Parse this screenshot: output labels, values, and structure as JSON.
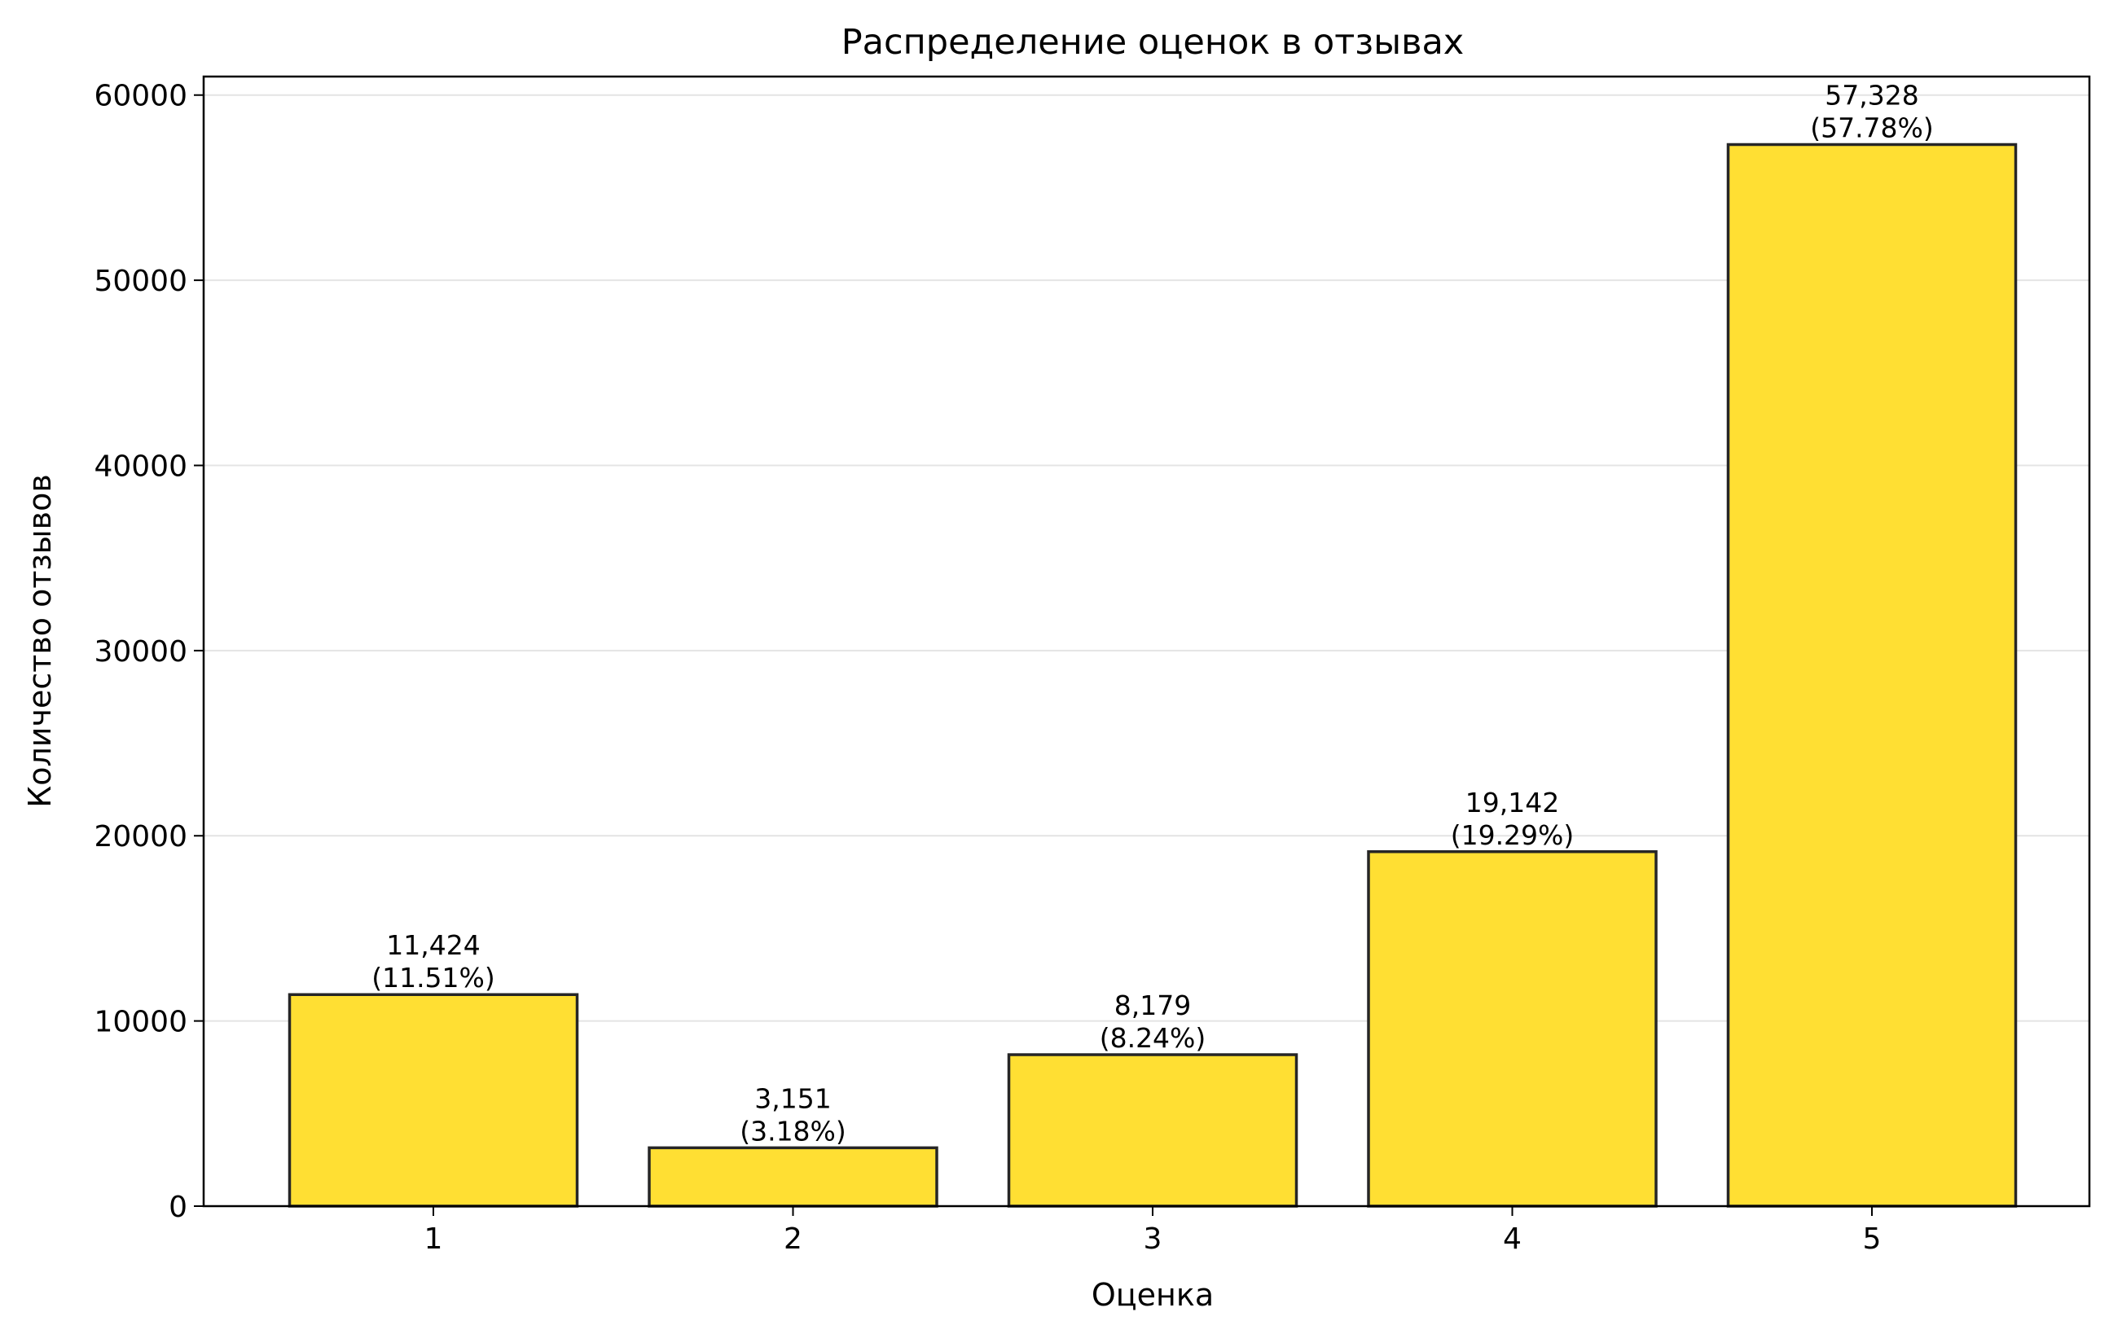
{
  "chart_data": {
    "type": "bar",
    "title": "Распределение оценок в отзывах",
    "xlabel": "Оценка",
    "ylabel": "Количество отзывов",
    "categories": [
      "1",
      "2",
      "3",
      "4",
      "5"
    ],
    "values": [
      11424,
      3151,
      8179,
      19142,
      57328
    ],
    "value_labels": [
      "11,424",
      "3,151",
      "8,179",
      "19,142",
      "57,328"
    ],
    "percent_labels": [
      "(11.51%)",
      "(3.18%)",
      "(8.24%)",
      "(19.29%)",
      "(57.78%)"
    ],
    "ylim": [
      0,
      61000
    ],
    "yticks": [
      0,
      10000,
      20000,
      30000,
      40000,
      50000,
      60000
    ],
    "ytick_labels": [
      "0",
      "10000",
      "20000",
      "30000",
      "40000",
      "50000",
      "60000"
    ],
    "grid": "horizontal",
    "legend": "none",
    "colors": {
      "bar_fill": "#ffdf33",
      "bar_edge": "#262626",
      "grid": "#e4e4e4"
    }
  }
}
